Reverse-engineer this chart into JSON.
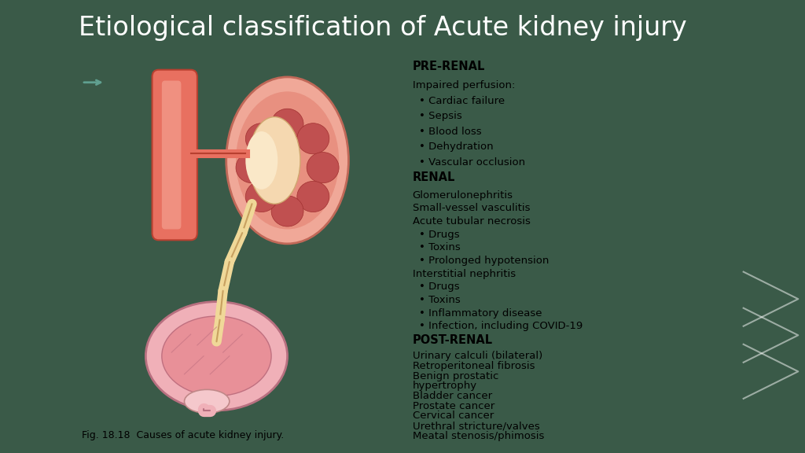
{
  "title": "Etiological classification of Acute kidney injury",
  "title_bg": "#2d5a4a",
  "title_color": "#ffffff",
  "title_fontsize": 24,
  "fig_bg": "#3a5a48",
  "content_bg": "#f2f2ec",
  "right_stripe_color": "#c8dfc0",
  "left_stripe_color": "#2d5a4a",
  "sections": [
    {
      "header": "PRE-RENAL",
      "header_bg": "#c8a8b0",
      "content_bg": "#f5eaee",
      "lines": [
        {
          "text": "Impaired perfusion:",
          "bullet": false
        },
        {
          "text": "Cardiac failure",
          "bullet": true
        },
        {
          "text": "Sepsis",
          "bullet": true
        },
        {
          "text": "Blood loss",
          "bullet": true
        },
        {
          "text": "Dehydration",
          "bullet": true
        },
        {
          "text": "Vascular occlusion",
          "bullet": true
        }
      ]
    },
    {
      "header": "RENAL",
      "header_bg": "#b0a8c8",
      "content_bg": "#edeaf5",
      "lines": [
        {
          "text": "Glomerulonephritis",
          "bullet": false
        },
        {
          "text": "Small-vessel vasculitis",
          "bullet": false
        },
        {
          "text": "Acute tubular necrosis",
          "bullet": false
        },
        {
          "text": "Drugs",
          "bullet": true
        },
        {
          "text": "Toxins",
          "bullet": true
        },
        {
          "text": "Prolonged hypotension",
          "bullet": true
        },
        {
          "text": "Interstitial nephritis",
          "bullet": false
        },
        {
          "text": "Drugs",
          "bullet": true
        },
        {
          "text": "Toxins",
          "bullet": true
        },
        {
          "text": "Inflammatory disease",
          "bullet": true
        },
        {
          "text": "Infection, including COVID-19",
          "bullet": true
        }
      ]
    },
    {
      "header": "POST-RENAL",
      "header_bg": "#c8c0a0",
      "content_bg": "#f5f0dc",
      "lines": [
        {
          "text": "Urinary calculi (bilateral)",
          "bullet": false
        },
        {
          "text": "Retroperitoneal fibrosis",
          "bullet": false
        },
        {
          "text": "Benign prostatic",
          "bullet": false
        },
        {
          "text": "hypertrophy",
          "bullet": false
        },
        {
          "text": "Bladder cancer",
          "bullet": false
        },
        {
          "text": "Prostate cancer",
          "bullet": false
        },
        {
          "text": "Cervical cancer",
          "bullet": false
        },
        {
          "text": "Urethral stricture/valves",
          "bullet": false
        },
        {
          "text": "Meatal stenosis/phimosis",
          "bullet": false
        }
      ]
    }
  ],
  "caption": "Fig. 18.18  Causes of acute kidney injury.",
  "caption_color": "#000000",
  "caption_fontsize": 9
}
